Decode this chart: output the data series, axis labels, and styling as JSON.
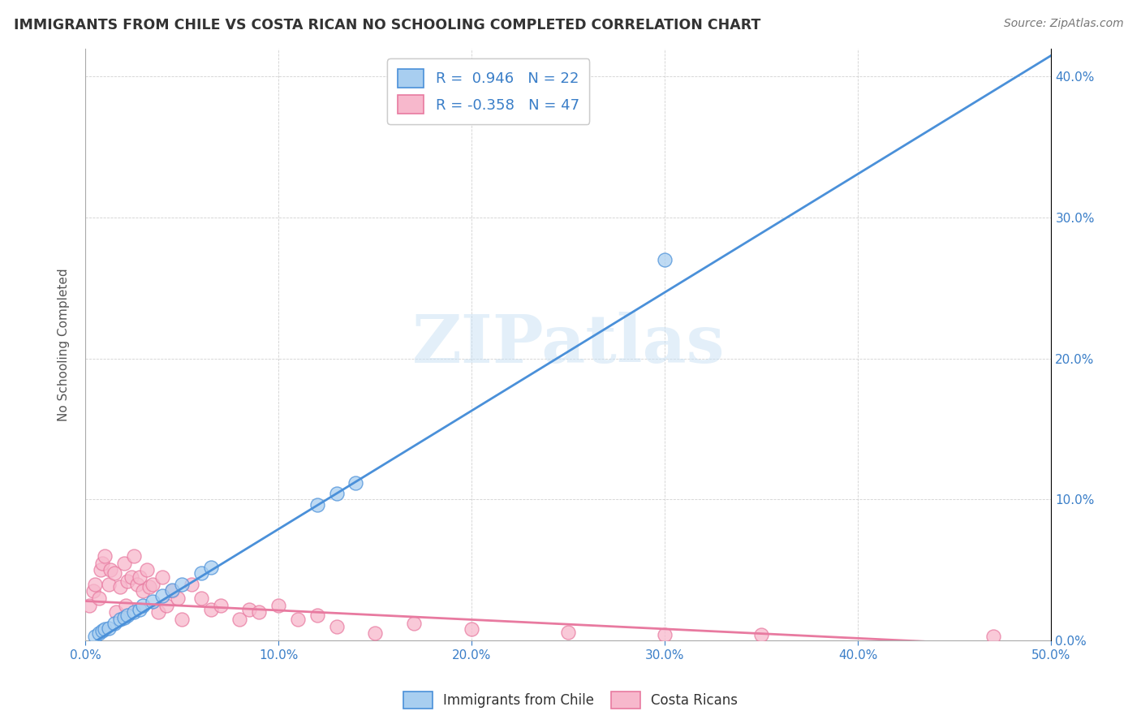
{
  "title": "IMMIGRANTS FROM CHILE VS COSTA RICAN NO SCHOOLING COMPLETED CORRELATION CHART",
  "source": "Source: ZipAtlas.com",
  "ylabel": "No Schooling Completed",
  "xlim": [
    0.0,
    0.5
  ],
  "ylim": [
    0.0,
    0.42
  ],
  "blue_R": 0.946,
  "blue_N": 22,
  "pink_R": -0.358,
  "pink_N": 47,
  "blue_color": "#A8CEF0",
  "pink_color": "#F7B8CC",
  "blue_line_color": "#4A90D9",
  "pink_line_color": "#E87AA0",
  "watermark": "ZIPatlas",
  "background_color": "#FFFFFF",
  "blue_line_x0": 0.0,
  "blue_line_y0": -0.005,
  "blue_line_x1": 0.5,
  "blue_line_y1": 0.415,
  "pink_line_x0": 0.0,
  "pink_line_y0": 0.028,
  "pink_line_x1": 0.5,
  "pink_line_y1": -0.005,
  "blue_scatter_x": [
    0.005,
    0.007,
    0.009,
    0.01,
    0.012,
    0.015,
    0.018,
    0.02,
    0.022,
    0.025,
    0.028,
    0.03,
    0.035,
    0.04,
    0.045,
    0.05,
    0.06,
    0.065,
    0.12,
    0.13,
    0.14,
    0.3
  ],
  "blue_scatter_y": [
    0.003,
    0.005,
    0.007,
    0.008,
    0.009,
    0.012,
    0.015,
    0.016,
    0.018,
    0.02,
    0.022,
    0.025,
    0.028,
    0.032,
    0.036,
    0.04,
    0.048,
    0.052,
    0.096,
    0.104,
    0.112,
    0.27
  ],
  "pink_scatter_x": [
    0.002,
    0.004,
    0.005,
    0.007,
    0.008,
    0.009,
    0.01,
    0.012,
    0.013,
    0.015,
    0.016,
    0.018,
    0.02,
    0.021,
    0.022,
    0.024,
    0.025,
    0.027,
    0.028,
    0.03,
    0.032,
    0.033,
    0.035,
    0.038,
    0.04,
    0.042,
    0.045,
    0.048,
    0.05,
    0.055,
    0.06,
    0.065,
    0.07,
    0.08,
    0.085,
    0.09,
    0.1,
    0.11,
    0.12,
    0.13,
    0.15,
    0.17,
    0.2,
    0.25,
    0.3,
    0.35,
    0.47
  ],
  "pink_scatter_y": [
    0.025,
    0.035,
    0.04,
    0.03,
    0.05,
    0.055,
    0.06,
    0.04,
    0.05,
    0.048,
    0.02,
    0.038,
    0.055,
    0.025,
    0.042,
    0.045,
    0.06,
    0.04,
    0.045,
    0.035,
    0.05,
    0.038,
    0.04,
    0.02,
    0.045,
    0.025,
    0.035,
    0.03,
    0.015,
    0.04,
    0.03,
    0.022,
    0.025,
    0.015,
    0.022,
    0.02,
    0.025,
    0.015,
    0.018,
    0.01,
    0.005,
    0.012,
    0.008,
    0.006,
    0.004,
    0.004,
    0.003
  ]
}
